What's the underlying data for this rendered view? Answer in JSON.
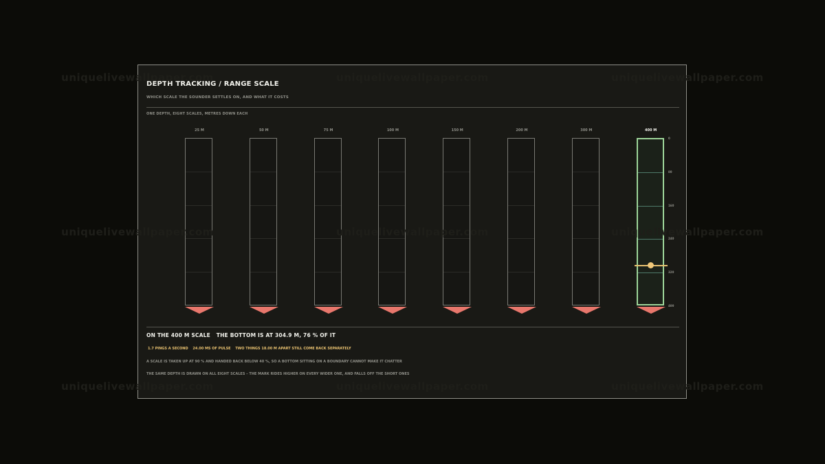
{
  "watermark": "uniquelivewallpaper.com",
  "panel": {
    "title": "DEPTH TRACKING / RANGE SCALE",
    "subtitle": "WHICH SCALE THE SOUNDER SETTLES ON, AND WHAT IT COSTS",
    "caption": "ONE DEPTH, EIGHT SCALES, METRES DOWN EACH"
  },
  "scales": [
    "25 M",
    "50 M",
    "75 M",
    "100 M",
    "150 M",
    "200 M",
    "300 M",
    "400 M"
  ],
  "active_scale_index": 7,
  "depth_ticks": [
    "0",
    "80",
    "160",
    "240",
    "320",
    "400"
  ],
  "bottom_depth_m": 304.9,
  "active_scale_m": 400,
  "summary": {
    "scale_text": "ON THE 400 M SCALE",
    "bottom_text": "THE BOTTOM IS AT 304.9 M, 76 % OF IT"
  },
  "stats": {
    "pings": "1.7 PINGS A SECOND",
    "pulse": "24.00 MS OF PULSE",
    "resolution": "TWO THINGS 18.00 M APART STILL COME BACK SEPARATELY"
  },
  "notes": [
    "A SCALE IS TAKEN UP AT 90 % AND HANDED BACK BELOW 40 %, SO A BOTTOM SITTING ON A BOUNDARY CANNOT MAKE IT CHATTER",
    "THE SAME DEPTH IS DRAWN ON ALL EIGHT SCALES – THE MARK RIDES HIGHER ON EVERY WIDER ONE, AND FALLS OFF THE SHORT ONES"
  ],
  "colors": {
    "accent": "#e8c170",
    "active_border": "#9ed69a",
    "bottom_marker": "#e8776c"
  }
}
